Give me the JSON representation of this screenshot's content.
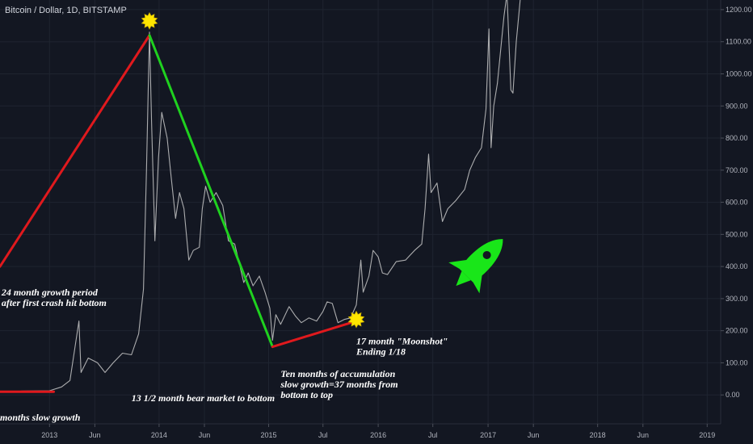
{
  "chart_data": {
    "type": "line",
    "title": "Bitcoin / Dollar, 1D, BITSTAMP",
    "xlabel": "",
    "ylabel": "",
    "ylim": [
      -90,
      1230
    ],
    "grid": true,
    "y_axis": {
      "side": "right",
      "ticks": [
        0,
        100,
        200,
        300,
        400,
        500,
        600,
        700,
        800,
        900,
        1000,
        1100,
        1200
      ],
      "tick_labels": [
        "0.00",
        "100.00",
        "200.00",
        "300.00",
        "400.00",
        "500.00",
        "600.00",
        "700.00",
        "800.00",
        "900.00",
        "1000.00",
        "1100.00",
        "1200.00"
      ]
    },
    "x_axis": {
      "ticks": [
        "2013-01-01",
        "2013-06-01",
        "2014-01-01",
        "2014-06-01",
        "2015-01-01",
        "2015-07-01",
        "2016-01-01",
        "2016-07-01",
        "2017-01-01",
        "2017-06-01",
        "2018-01-01",
        "2018-06-01",
        "2019-01-01"
      ],
      "tick_labels": [
        "2013",
        "Jun",
        "2014",
        "Jun",
        "2015",
        "Jul",
        "2016",
        "Jul",
        "2017",
        "Jun",
        "2018",
        "Jun",
        "2019"
      ],
      "range": [
        "2012-07-20",
        "2019-02-15"
      ]
    },
    "series": [
      {
        "name": "",
        "color": "#c8c8c8",
        "points": [
          [
            "2012-07-20",
            8
          ],
          [
            "2012-10-01",
            12
          ],
          [
            "2013-01-01",
            13
          ],
          [
            "2013-02-10",
            25
          ],
          [
            "2013-03-10",
            45
          ],
          [
            "2013-04-09",
            230
          ],
          [
            "2013-04-16",
            70
          ],
          [
            "2013-05-10",
            115
          ],
          [
            "2013-06-10",
            100
          ],
          [
            "2013-07-05",
            70
          ],
          [
            "2013-08-01",
            100
          ],
          [
            "2013-09-01",
            130
          ],
          [
            "2013-10-01",
            125
          ],
          [
            "2013-10-25",
            190
          ],
          [
            "2013-11-10",
            330
          ],
          [
            "2013-11-20",
            700
          ],
          [
            "2013-11-30",
            1130
          ],
          [
            "2013-12-07",
            850
          ],
          [
            "2013-12-18",
            480
          ],
          [
            "2013-12-30",
            740
          ],
          [
            "2014-01-10",
            880
          ],
          [
            "2014-01-28",
            800
          ],
          [
            "2014-02-10",
            680
          ],
          [
            "2014-02-25",
            550
          ],
          [
            "2014-03-10",
            630
          ],
          [
            "2014-03-25",
            580
          ],
          [
            "2014-04-10",
            420
          ],
          [
            "2014-04-25",
            450
          ],
          [
            "2014-05-15",
            460
          ],
          [
            "2014-05-25",
            580
          ],
          [
            "2014-06-05",
            650
          ],
          [
            "2014-06-20",
            600
          ],
          [
            "2014-07-10",
            630
          ],
          [
            "2014-08-01",
            590
          ],
          [
            "2014-08-20",
            480
          ],
          [
            "2014-09-10",
            470
          ],
          [
            "2014-09-25",
            410
          ],
          [
            "2014-10-10",
            350
          ],
          [
            "2014-10-25",
            380
          ],
          [
            "2014-11-10",
            340
          ],
          [
            "2014-12-01",
            370
          ],
          [
            "2014-12-20",
            320
          ],
          [
            "2015-01-05",
            270
          ],
          [
            "2015-01-14",
            170
          ],
          [
            "2015-01-25",
            250
          ],
          [
            "2015-02-10",
            220
          ],
          [
            "2015-03-10",
            275
          ],
          [
            "2015-04-01",
            245
          ],
          [
            "2015-04-20",
            225
          ],
          [
            "2015-05-15",
            240
          ],
          [
            "2015-06-10",
            230
          ],
          [
            "2015-07-01",
            260
          ],
          [
            "2015-07-15",
            290
          ],
          [
            "2015-08-01",
            285
          ],
          [
            "2015-08-20",
            225
          ],
          [
            "2015-09-10",
            235
          ],
          [
            "2015-10-01",
            240
          ],
          [
            "2015-10-20",
            280
          ],
          [
            "2015-11-04",
            420
          ],
          [
            "2015-11-12",
            320
          ],
          [
            "2015-12-01",
            370
          ],
          [
            "2015-12-15",
            450
          ],
          [
            "2016-01-01",
            430
          ],
          [
            "2016-01-15",
            380
          ],
          [
            "2016-02-01",
            375
          ],
          [
            "2016-03-01",
            415
          ],
          [
            "2016-04-01",
            420
          ],
          [
            "2016-05-01",
            450
          ],
          [
            "2016-05-25",
            470
          ],
          [
            "2016-06-05",
            580
          ],
          [
            "2016-06-17",
            750
          ],
          [
            "2016-06-25",
            630
          ],
          [
            "2016-07-15",
            660
          ],
          [
            "2016-08-02",
            540
          ],
          [
            "2016-08-20",
            580
          ],
          [
            "2016-09-15",
            605
          ],
          [
            "2016-10-15",
            640
          ],
          [
            "2016-11-01",
            700
          ],
          [
            "2016-11-20",
            740
          ],
          [
            "2016-12-10",
            770
          ],
          [
            "2016-12-25",
            890
          ],
          [
            "2017-01-04",
            1140
          ],
          [
            "2017-01-11",
            770
          ],
          [
            "2017-01-20",
            900
          ],
          [
            "2017-02-01",
            970
          ],
          [
            "2017-02-23",
            1180
          ],
          [
            "2017-03-05",
            1250
          ],
          [
            "2017-03-18",
            950
          ],
          [
            "2017-03-25",
            940
          ],
          [
            "2017-04-05",
            1100
          ],
          [
            "2017-04-20",
            1250
          ]
        ]
      }
    ],
    "trend_lines": [
      {
        "color": "#e0191d",
        "points": [
          [
            "2012-07-20",
            400
          ],
          [
            "2013-11-30",
            1120
          ]
        ]
      },
      {
        "color": "#1fd11f",
        "points": [
          [
            "2013-11-30",
            1120
          ],
          [
            "2015-01-14",
            150
          ]
        ]
      },
      {
        "color": "#e0191d",
        "points": [
          [
            "2015-01-14",
            150
          ],
          [
            "2015-10-20",
            230
          ]
        ]
      },
      {
        "color": "#e0191d",
        "points": [
          [
            "2012-07-20",
            10
          ],
          [
            "2013-01-15",
            10
          ]
        ]
      }
    ],
    "markers": [
      {
        "type": "star",
        "color": "#ffe600",
        "at": [
          "2013-11-30",
          1165
        ]
      },
      {
        "type": "star",
        "color": "#ffe600",
        "at": [
          "2015-10-20",
          235
        ]
      }
    ],
    "annotations": [
      {
        "lines": [
          "24 month growth period",
          "after first crash hit bottom"
        ],
        "at": [
          "2012-07-25",
          310
        ]
      },
      {
        "lines": [
          "17 month \"Moonshot\"",
          "Ending 1/18"
        ],
        "at": [
          "2015-10-20",
          158
        ]
      },
      {
        "lines": [
          "Ten months of accumulation",
          "slow growth=37 months from",
          "bottom to top"
        ],
        "at": [
          "2015-02-10",
          56
        ]
      },
      {
        "lines": [
          "13 1/2 month bear market to bottom"
        ],
        "at": [
          "2013-10-01",
          -20
        ]
      },
      {
        "lines": [
          "months slow growth"
        ],
        "at": [
          "2012-07-20",
          -80
        ]
      }
    ],
    "icons": [
      {
        "name": "rocket-icon",
        "color": "#19e619",
        "at": [
          "2016-11-20",
          400
        ]
      }
    ]
  }
}
